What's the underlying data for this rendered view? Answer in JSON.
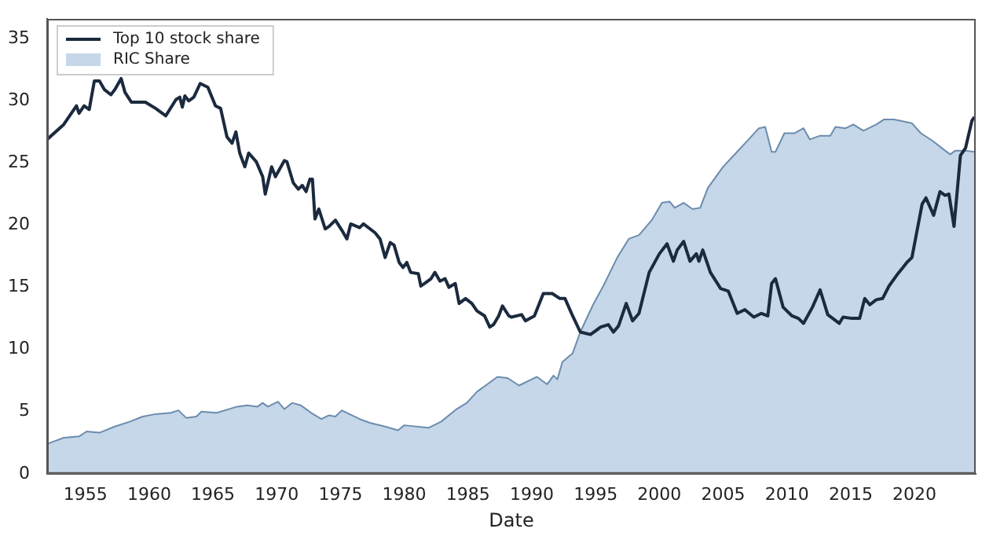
{
  "chart_data": {
    "type": "line",
    "xlabel": "Date",
    "xlim": [
      1952,
      2024.8
    ],
    "xticks": [
      1955,
      1960,
      1965,
      1970,
      1975,
      1980,
      1985,
      1990,
      1995,
      2000,
      2005,
      2010,
      2015,
      2020
    ],
    "ylim": [
      0,
      36.6
    ],
    "yticks": [
      0,
      5,
      10,
      15,
      20,
      25,
      30,
      35
    ],
    "grid": false,
    "legend": "top left",
    "marker": "none",
    "line_style": "solid",
    "series": [
      {
        "name": "Top 10 stock share",
        "color": "#1b2a3e",
        "x": [
          1952,
          1953.3,
          1954.3,
          1954.5,
          1954.9,
          1955.3,
          1955.7,
          1956.1,
          1956.5,
          1957,
          1957.3,
          1957.8,
          1958.1,
          1958.6,
          1959.7,
          1960.5,
          1961.3,
          1962.1,
          1962.4,
          1962.6,
          1962.8,
          1963.1,
          1963.5,
          1964,
          1964.6,
          1965.2,
          1965.6,
          1966.1,
          1966.5,
          1966.8,
          1967.1,
          1967.5,
          1967.8,
          1968.4,
          1968.9,
          1969.1,
          1969.6,
          1969.9,
          1970.6,
          1970.8,
          1971.3,
          1971.7,
          1972,
          1972.3,
          1972.6,
          1972.8,
          1973,
          1973.3,
          1973.8,
          1974.1,
          1974.6,
          1975.1,
          1975.5,
          1975.8,
          1976.5,
          1976.8,
          1977.7,
          1978.1,
          1978.5,
          1978.9,
          1979.2,
          1979.6,
          1979.9,
          1980.2,
          1980.5,
          1981.1,
          1981.3,
          1981.7,
          1982.1,
          1982.4,
          1982.8,
          1983.2,
          1983.5,
          1984,
          1984.3,
          1984.8,
          1985.3,
          1985.7,
          1986.3,
          1986.7,
          1987,
          1987.4,
          1987.7,
          1988.2,
          1988.4,
          1989.2,
          1989.5,
          1990.2,
          1990.9,
          1991.6,
          1992.2,
          1992.6,
          1993.2,
          1993.8,
          1994.6,
          1995.4,
          1996,
          1996.4,
          1996.8,
          1997.4,
          1997.9,
          1998.4,
          1999.2,
          2000,
          2000.6,
          2001.1,
          2001.4,
          2001.9,
          2002.4,
          2002.9,
          2003.1,
          2003.4,
          2004,
          2004.8,
          2005.4,
          2006.1,
          2006.7,
          2007.4,
          2008,
          2008.5,
          2008.8,
          2009.1,
          2009.7,
          2010.4,
          2010.9,
          2011.3,
          2012,
          2012.6,
          2013.2,
          2014.1,
          2014.4,
          2015.1,
          2015.7,
          2016.1,
          2016.5,
          2017,
          2017.5,
          2018,
          2018.7,
          2019.1,
          2019.4,
          2019.8,
          2020.6,
          2020.9,
          2021.5,
          2022,
          2022.4,
          2022.7,
          2023.1,
          2023.6,
          2024,
          2024.5,
          2024.7
        ],
        "values": [
          26.9,
          28.1,
          29.6,
          29.0,
          29.6,
          29.3,
          31.6,
          31.6,
          30.9,
          30.5,
          30.9,
          31.8,
          30.7,
          29.9,
          29.9,
          29.4,
          28.8,
          30.1,
          30.3,
          29.5,
          30.4,
          30.0,
          30.3,
          31.4,
          31.1,
          29.6,
          29.4,
          27.1,
          26.6,
          27.5,
          25.8,
          24.7,
          25.8,
          25.1,
          23.9,
          22.5,
          24.7,
          23.9,
          25.2,
          25.1,
          23.4,
          22.9,
          23.2,
          22.7,
          23.7,
          23.7,
          20.5,
          21.3,
          19.7,
          19.9,
          20.4,
          19.6,
          18.9,
          20.1,
          19.8,
          20.1,
          19.4,
          18.9,
          17.4,
          18.6,
          18.4,
          17.0,
          16.6,
          17.0,
          16.2,
          16.1,
          15.1,
          15.4,
          15.7,
          16.2,
          15.5,
          15.7,
          15.0,
          15.3,
          13.7,
          14.1,
          13.7,
          13.1,
          12.7,
          11.8,
          12.0,
          12.7,
          13.5,
          12.7,
          12.6,
          12.8,
          12.3,
          12.7,
          14.5,
          14.5,
          14.1,
          14.1,
          12.7,
          11.4,
          11.2,
          11.8,
          12.0,
          11.4,
          11.9,
          13.7,
          12.3,
          12.9,
          16.2,
          17.7,
          18.5,
          17.1,
          18.0,
          18.7,
          17.1,
          17.7,
          17.1,
          18.0,
          16.2,
          14.9,
          14.7,
          12.9,
          13.2,
          12.6,
          12.9,
          12.7,
          15.3,
          15.7,
          13.4,
          12.7,
          12.5,
          12.1,
          13.4,
          14.8,
          12.8,
          12.1,
          12.6,
          12.5,
          12.5,
          14.1,
          13.6,
          14.0,
          14.1,
          15.1,
          16.1,
          16.6,
          17.0,
          17.4,
          21.7,
          22.2,
          20.8,
          22.7,
          22.4,
          22.5,
          19.9,
          25.6,
          26.2,
          28.4,
          28.7
        ]
      },
      {
        "name": "RIC Share",
        "type": "area",
        "color": "#c5d7e8",
        "x": [
          1952,
          1953.3,
          1954.5,
          1955.1,
          1956.1,
          1957.3,
          1958.5,
          1959.5,
          1960.5,
          1961.7,
          1962.3,
          1962.9,
          1963.7,
          1964.1,
          1965.3,
          1966.9,
          1967.7,
          1968.5,
          1968.9,
          1969.3,
          1970.1,
          1970.6,
          1971.2,
          1971.9,
          1972.7,
          1973.5,
          1974.1,
          1974.6,
          1975.1,
          1976.5,
          1977.3,
          1978.5,
          1979.5,
          1980,
          1981.9,
          1982.9,
          1984.1,
          1984.9,
          1985.7,
          1986.5,
          1987.3,
          1988.1,
          1989,
          1990.4,
          1991.2,
          1991.7,
          1992,
          1992.4,
          1993.2,
          1993.8,
          1994.8,
          1995.6,
          1996.7,
          1997.6,
          1998.4,
          1999.4,
          2000.2,
          2000.8,
          2001.2,
          2001.9,
          2002.6,
          2003.2,
          2003.8,
          2005,
          2006,
          2007,
          2007.8,
          2008.3,
          2008.8,
          2009.1,
          2009.8,
          2010.6,
          2011.3,
          2011.8,
          2012.6,
          2013.4,
          2013.8,
          2014.6,
          2015.2,
          2016,
          2017,
          2017.6,
          2018.4,
          2019.8,
          2020.5,
          2021.4,
          2022.4,
          2022.8,
          2023.2,
          2024,
          2024.7
        ],
        "values": [
          2.4,
          2.9,
          3.0,
          3.4,
          3.3,
          3.8,
          4.2,
          4.6,
          4.8,
          4.9,
          5.1,
          4.5,
          4.6,
          5.0,
          4.9,
          5.4,
          5.5,
          5.4,
          5.7,
          5.4,
          5.8,
          5.2,
          5.7,
          5.5,
          4.9,
          4.4,
          4.7,
          4.6,
          5.1,
          4.4,
          4.1,
          3.8,
          3.5,
          3.9,
          3.7,
          4.2,
          5.2,
          5.7,
          6.6,
          7.2,
          7.8,
          7.7,
          7.1,
          7.8,
          7.2,
          7.9,
          7.6,
          9.0,
          9.7,
          11.4,
          13.6,
          15.1,
          17.4,
          18.9,
          19.2,
          20.4,
          21.8,
          21.9,
          21.4,
          21.8,
          21.3,
          21.4,
          23.0,
          24.7,
          25.8,
          26.9,
          27.8,
          27.9,
          25.9,
          25.9,
          27.4,
          27.4,
          27.8,
          26.9,
          27.2,
          27.2,
          27.9,
          27.8,
          28.1,
          27.6,
          28.1,
          28.5,
          28.5,
          28.2,
          27.4,
          26.8,
          26.0,
          25.7,
          26.0,
          26.0,
          25.9
        ]
      }
    ]
  }
}
